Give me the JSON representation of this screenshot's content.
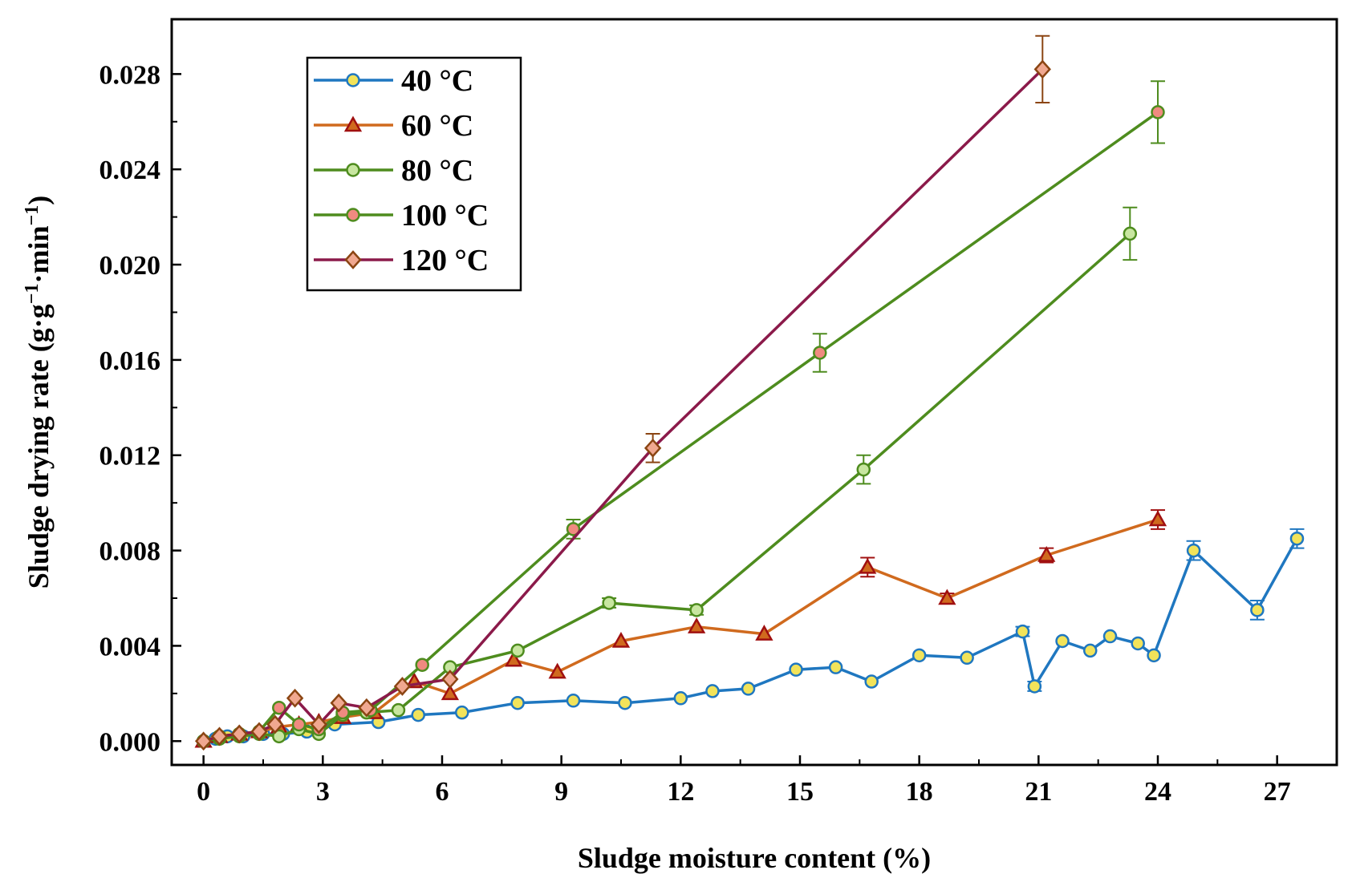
{
  "chart_data": {
    "type": "line",
    "title": "",
    "xlabel": "Sludge moisture content (%)",
    "ylabel": "Sludge drying rate (g·g",
    "ylabel_sup1": "−1",
    "ylabel_mid": "·min",
    "ylabel_sup2": "−1",
    "ylabel_end": ")",
    "xlim": [
      -0.8,
      28.5
    ],
    "ylim": [
      -0.001,
      0.0303
    ],
    "xticks": [
      0,
      3,
      6,
      9,
      12,
      15,
      18,
      21,
      24,
      27
    ],
    "xtick_labels": [
      "0",
      "3",
      "6",
      "9",
      "12",
      "15",
      "18",
      "21",
      "24",
      "27"
    ],
    "yticks": [
      0,
      0.004,
      0.008,
      0.012,
      0.016,
      0.02,
      0.024,
      0.028
    ],
    "ytick_labels": [
      "0.000",
      "0.004",
      "0.008",
      "0.012",
      "0.016",
      "0.020",
      "0.024",
      "0.028"
    ],
    "legend_position": "top-left",
    "series": [
      {
        "name": "40 °C",
        "color": "#1f77c0",
        "marker": "circle",
        "marker_fill": "#f2e35a",
        "x": [
          0,
          0.3,
          0.6,
          1.0,
          1.5,
          2.0,
          2.6,
          3.3,
          4.4,
          5.4,
          6.5,
          7.9,
          9.3,
          10.6,
          12.0,
          12.8,
          13.7,
          14.9,
          15.9,
          16.8,
          18.0,
          19.2,
          20.6,
          20.9,
          21.6,
          22.3,
          22.8,
          23.5,
          23.9,
          24.9,
          26.5,
          27.5
        ],
        "y": [
          0,
          0.0001,
          0.0002,
          0.0002,
          0.0003,
          0.0003,
          0.0004,
          0.0007,
          0.0008,
          0.0011,
          0.0012,
          0.0016,
          0.0017,
          0.0016,
          0.0018,
          0.0021,
          0.0022,
          0.003,
          0.0031,
          0.0025,
          0.0036,
          0.0035,
          0.0046,
          0.0023,
          0.0042,
          0.0038,
          0.0044,
          0.0041,
          0.0036,
          0.008,
          0.0055,
          0.0085
        ],
        "err": [
          0,
          0,
          0,
          0,
          0,
          0,
          0,
          0,
          0,
          0,
          0,
          0,
          0,
          0,
          0,
          0,
          0,
          0,
          0,
          0,
          0,
          0,
          0.0002,
          0.0002,
          0,
          0,
          0,
          0,
          0,
          0.0004,
          0.0004,
          0.0004
        ]
      },
      {
        "name": "60 °C",
        "color": "#d06a1e",
        "marker": "triangle",
        "marker_fill": "#d06a1e",
        "marker_stroke": "#a01010",
        "x": [
          0,
          0.4,
          0.9,
          1.4,
          1.9,
          2.4,
          2.9,
          3.5,
          4.3,
          5.3,
          6.2,
          7.8,
          8.9,
          10.5,
          12.4,
          14.1,
          16.7,
          18.7,
          21.2,
          24.0
        ],
        "y": [
          0,
          0.0002,
          0.0003,
          0.0004,
          0.0006,
          0.0007,
          0.0008,
          0.001,
          0.0012,
          0.0025,
          0.002,
          0.0034,
          0.0029,
          0.0042,
          0.0048,
          0.0045,
          0.0073,
          0.006,
          0.0078,
          0.0093
        ],
        "err": [
          0,
          0,
          0,
          0,
          0,
          0,
          0,
          0,
          0,
          0,
          0,
          0,
          0,
          0,
          0,
          0,
          0.0004,
          0.0002,
          0.0003,
          0.0004
        ]
      },
      {
        "name": "80 °C",
        "color": "#4e8c1e",
        "marker": "circle",
        "marker_fill": "#c8e6a0",
        "x": [
          0,
          0.4,
          0.9,
          1.4,
          1.9,
          2.4,
          2.9,
          3.5,
          4.1,
          4.9,
          6.2,
          7.9,
          10.2,
          12.4,
          16.6,
          23.3
        ],
        "y": [
          0,
          0.0001,
          0.0002,
          0.0003,
          0.0002,
          0.0005,
          0.0003,
          0.0011,
          0.0012,
          0.0013,
          0.0031,
          0.0038,
          0.0058,
          0.0055,
          0.0114,
          0.0213
        ],
        "err": [
          0,
          0,
          0,
          0,
          0,
          0,
          0,
          0,
          0,
          0,
          0,
          0,
          0.0002,
          0.0002,
          0.0006,
          0.0011
        ]
      },
      {
        "name": "100 °C",
        "color": "#4e8c1e",
        "marker": "circle",
        "marker_fill": "#f08a80",
        "x": [
          0,
          0.4,
          0.9,
          1.4,
          1.9,
          2.4,
          2.9,
          3.5,
          4.2,
          5.5,
          9.3,
          15.5,
          24.0
        ],
        "y": [
          0,
          0.0002,
          0.0003,
          0.0004,
          0.0014,
          0.0007,
          0.0005,
          0.0012,
          0.0013,
          0.0032,
          0.0089,
          0.0163,
          0.0264
        ],
        "err": [
          0,
          0,
          0,
          0,
          0,
          0,
          0,
          0,
          0,
          0,
          0.0004,
          0.0008,
          0.0013
        ]
      },
      {
        "name": "120 °C",
        "color": "#8b1a4a",
        "marker": "diamond",
        "marker_fill": "#f0a890",
        "marker_stroke": "#8b4513",
        "x": [
          0,
          0.4,
          0.9,
          1.4,
          1.8,
          2.3,
          2.9,
          3.4,
          4.1,
          5.0,
          6.2,
          11.3,
          21.1
        ],
        "y": [
          0,
          0.0002,
          0.0003,
          0.0004,
          0.0007,
          0.0018,
          0.0007,
          0.0016,
          0.0014,
          0.0023,
          0.0026,
          0.0123,
          0.0282
        ],
        "err": [
          0,
          0,
          0,
          0,
          0,
          0,
          0,
          0,
          0,
          0,
          0,
          0.0006,
          0.0014
        ]
      }
    ]
  }
}
